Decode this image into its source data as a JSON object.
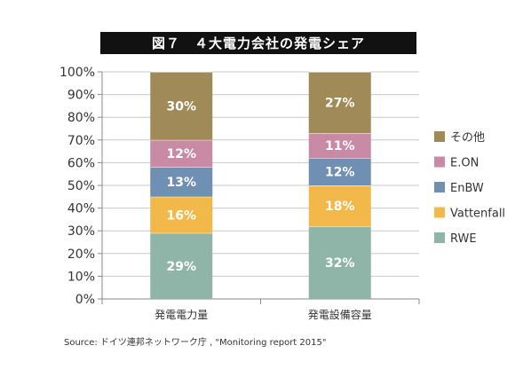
{
  "title": "図７　４大電力会社の発電シェア",
  "source": "Source: ドイツ連邦ネットワーク庁 , \"Monitoring report 2015\"",
  "chart_data": {
    "type": "bar",
    "stacked": true,
    "categories": [
      "発電電力量",
      "発電設備容量"
    ],
    "ylim": [
      0,
      100
    ],
    "yticks": [
      "0%",
      "10%",
      "20%",
      "30%",
      "40%",
      "50%",
      "60%",
      "70%",
      "80%",
      "90%",
      "100%"
    ],
    "grid": true,
    "legend_position": "right",
    "series": [
      {
        "name": "RWE",
        "color": "#8fb5a8",
        "values": [
          29,
          32
        ],
        "labels": [
          "29%",
          "32%"
        ]
      },
      {
        "name": "Vattenfall",
        "color": "#f2b94a",
        "values": [
          16,
          18
        ],
        "labels": [
          "16%",
          "18%"
        ]
      },
      {
        "name": "EnBW",
        "color": "#6f8fb3",
        "values": [
          13,
          12
        ],
        "labels": [
          "13%",
          "12%"
        ]
      },
      {
        "name": "E.ON",
        "color": "#c98aa6",
        "values": [
          12,
          11
        ],
        "labels": [
          "12%",
          "11%"
        ]
      },
      {
        "name": "その他",
        "color": "#a08a58",
        "values": [
          30,
          27
        ],
        "labels": [
          "30%",
          "27%"
        ]
      }
    ],
    "legend_order": [
      "その他",
      "E.ON",
      "EnBW",
      "Vattenfall",
      "RWE"
    ]
  }
}
